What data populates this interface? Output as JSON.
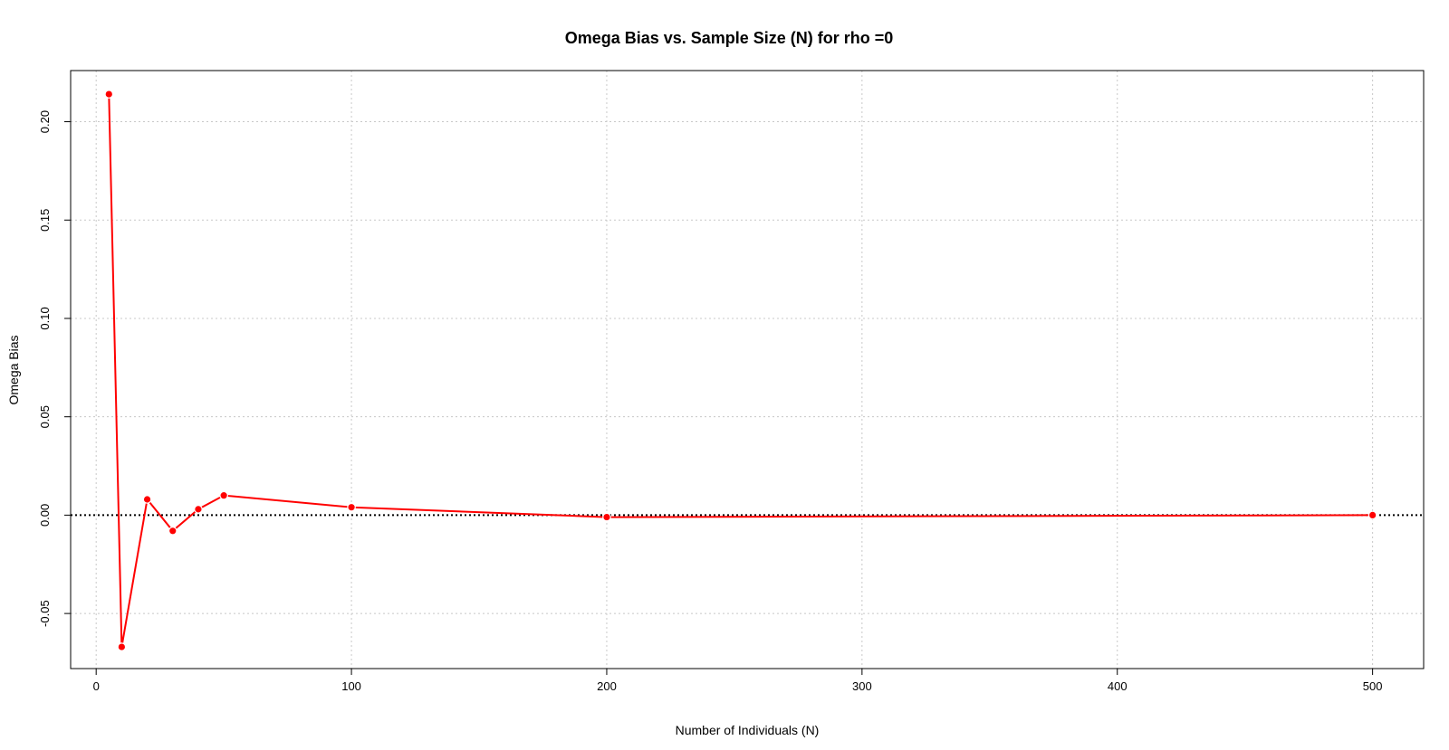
{
  "chart_data": {
    "type": "line",
    "title": "Omega Bias vs. Sample Size (N) for rho =0",
    "xlabel": "Number of Individuals (N)",
    "ylabel": "Omega Bias",
    "xlim": [
      -10,
      520
    ],
    "ylim": [
      -0.078,
      0.226
    ],
    "xticks": [
      0,
      100,
      200,
      300,
      400,
      500
    ],
    "xtick_labels": [
      "0",
      "100",
      "200",
      "300",
      "400",
      "500"
    ],
    "yticks": [
      -0.05,
      0.0,
      0.05,
      0.1,
      0.15,
      0.2
    ],
    "ytick_labels": [
      "-0.05",
      "0.00",
      "0.05",
      "0.10",
      "0.15",
      "0.20"
    ],
    "grid": true,
    "reference_line": {
      "y": 0,
      "style": "dotted",
      "color": "#000000"
    },
    "series": [
      {
        "color": "#ff0000",
        "x": [
          5,
          10,
          20,
          30,
          40,
          50,
          100,
          200,
          500
        ],
        "y": [
          0.214,
          -0.067,
          0.008,
          -0.008,
          0.003,
          0.01,
          0.004,
          -0.001,
          0.0
        ]
      }
    ]
  }
}
